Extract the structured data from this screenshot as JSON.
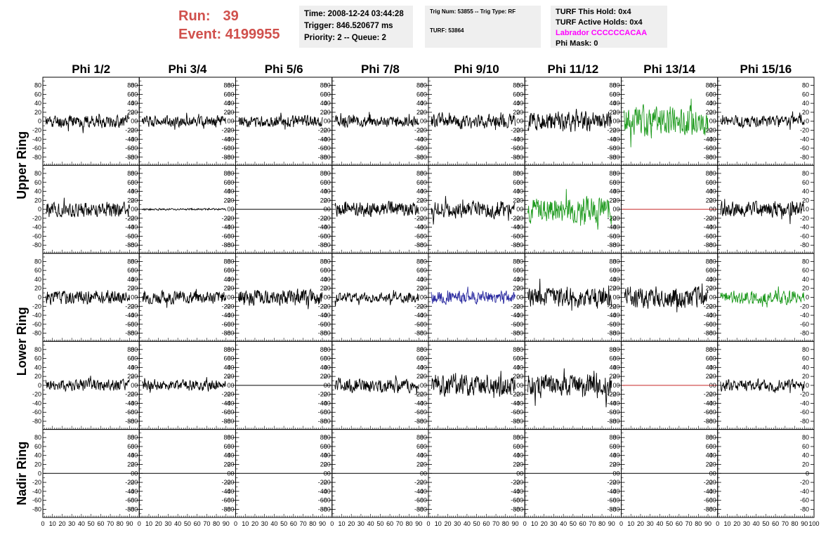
{
  "header": {
    "run_label": "Run:",
    "run_value": "39",
    "event_label": "Event:",
    "event_value": "4199955",
    "time": "Time: 2008-12-24 03:44:28",
    "trigger": "Trigger: 846.520677 ms",
    "priority": "Priority: 2 -- Queue: 2",
    "trig_num": "Trig Num: 53855 -- Trig Type: RF",
    "turf": "TURF: 53864",
    "turf_hold": "TURF This Hold: 0x4",
    "turf_active": "TURF Active Holds: 0x4",
    "labrador": "Labrador CCCCCCACAA",
    "phi_mask": "Phi Mask: 0"
  },
  "columns": [
    "Phi 1/2",
    "Phi 3/4",
    "Phi 5/6",
    "Phi 7/8",
    "Phi 9/10",
    "Phi 11/12",
    "Phi 13/14",
    "Phi 15/16"
  ],
  "ring_labels": [
    "Upper Ring",
    "Lower Ring",
    "Nadir Ring"
  ],
  "colors": {
    "black": "#000000",
    "green": "#1e9a1e",
    "blue": "#2a2aa0",
    "red": "#c82828",
    "run": "#d0504c",
    "magenta": "#ff00ff"
  },
  "chart_data": {
    "type": "line",
    "xlim": [
      0,
      100
    ],
    "ylim": [
      -95,
      95
    ],
    "x_ticks": [
      0,
      10,
      20,
      30,
      40,
      50,
      60,
      70,
      80,
      90,
      100
    ],
    "x_tick_labels": [
      "0",
      "10",
      "20",
      "30",
      "40",
      "50",
      "60",
      "70",
      "80",
      "90",
      "100"
    ],
    "y_ticks": [
      80,
      60,
      40,
      20,
      0,
      -20,
      -40,
      -60,
      -80
    ],
    "y_tick_labels": [
      "80",
      "60",
      "40",
      "20",
      "0",
      "-20",
      "-40",
      "-60",
      "-80"
    ],
    "traces": [
      [
        {
          "color": "black",
          "amp": 14,
          "seed": 11
        },
        {
          "color": "black",
          "amp": 12,
          "seed": 12
        },
        {
          "color": "black",
          "amp": 12,
          "seed": 13
        },
        {
          "color": "black",
          "amp": 12,
          "seed": 14
        },
        {
          "color": "black",
          "amp": 15,
          "seed": 15
        },
        {
          "color": "black",
          "amp": 21,
          "seed": 16
        },
        {
          "color": "green",
          "amp": 32,
          "seed": 17
        },
        {
          "color": "black",
          "amp": 12,
          "seed": 18
        }
      ],
      [
        {
          "color": "black",
          "amp": 16,
          "seed": 21
        },
        {
          "color": "black",
          "amp": 2,
          "seed": 22
        },
        {
          "color": "black",
          "amp": 0,
          "seed": 23
        },
        {
          "color": "black",
          "amp": 16,
          "seed": 24
        },
        {
          "color": "black",
          "amp": 18,
          "seed": 25
        },
        {
          "color": "green",
          "amp": 28,
          "seed": 26
        },
        {
          "color": "red",
          "amp": 0,
          "seed": 27
        },
        {
          "color": "black",
          "amp": 17,
          "seed": 28
        }
      ],
      [
        {
          "color": "black",
          "amp": 15,
          "seed": 31
        },
        {
          "color": "black",
          "amp": 14,
          "seed": 32
        },
        {
          "color": "black",
          "amp": 18,
          "seed": 33
        },
        {
          "color": "black",
          "amp": 11,
          "seed": 34
        },
        {
          "color": "blue",
          "amp": 14,
          "seed": 35
        },
        {
          "color": "black",
          "amp": 22,
          "seed": 36
        },
        {
          "color": "black",
          "amp": 24,
          "seed": 37
        },
        {
          "color": "green",
          "amp": 14,
          "seed": 38
        }
      ],
      [
        {
          "color": "black",
          "amp": 14,
          "seed": 41
        },
        {
          "color": "black",
          "amp": 12,
          "seed": 42
        },
        {
          "color": "black",
          "amp": 0,
          "seed": 43
        },
        {
          "color": "black",
          "amp": 16,
          "seed": 44
        },
        {
          "color": "black",
          "amp": 24,
          "seed": 45
        },
        {
          "color": "black",
          "amp": 25,
          "seed": 46
        },
        {
          "color": "red",
          "amp": 0,
          "seed": 47
        },
        {
          "color": "black",
          "amp": 14,
          "seed": 48
        }
      ],
      [
        {
          "color": "black",
          "amp": 0,
          "seed": 51
        },
        {
          "color": "black",
          "amp": 0,
          "seed": 52
        },
        {
          "color": "black",
          "amp": 0,
          "seed": 53
        },
        {
          "color": "black",
          "amp": 0,
          "seed": 54
        },
        {
          "color": "black",
          "amp": 0,
          "seed": 55
        },
        {
          "color": "black",
          "amp": 0,
          "seed": 56
        },
        {
          "color": "black",
          "amp": 0,
          "seed": 57
        },
        {
          "color": "black",
          "amp": 0,
          "seed": 58
        }
      ]
    ]
  }
}
